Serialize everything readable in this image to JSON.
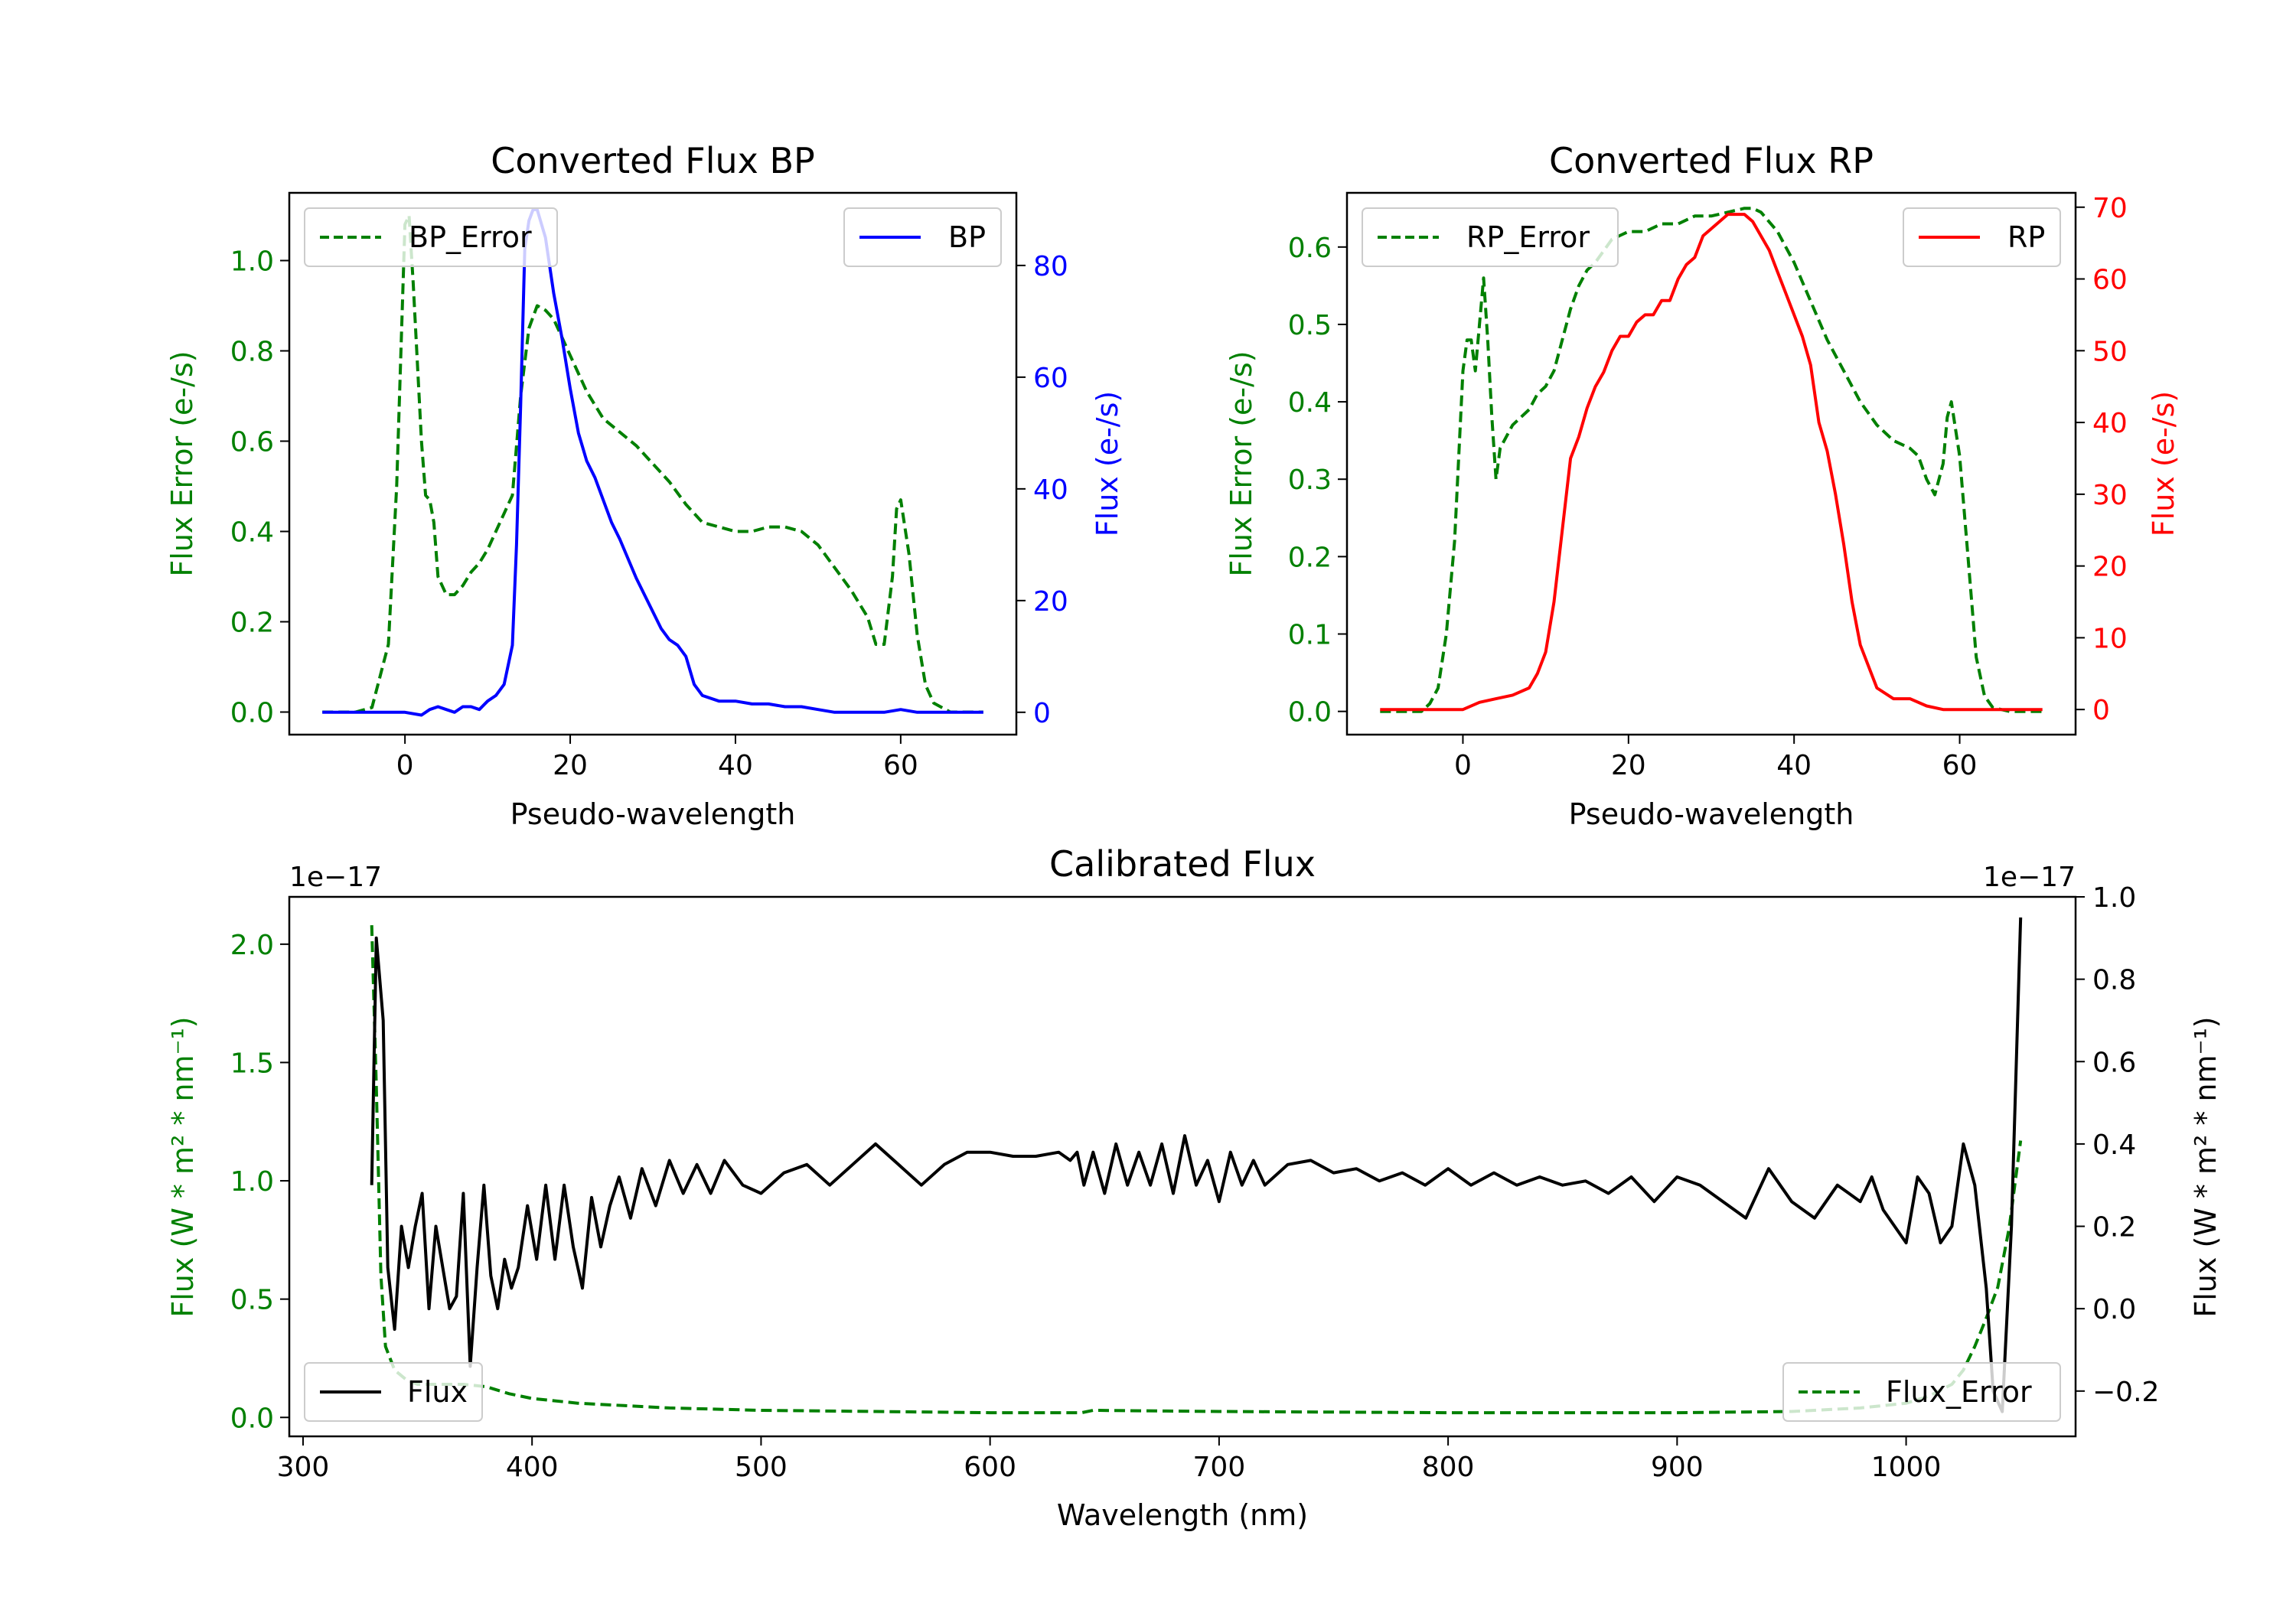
{
  "colors": {
    "green": "#008000",
    "blue": "#0000ff",
    "red": "#ff0000",
    "black": "#000000"
  },
  "chart_data": [
    {
      "type": "line",
      "title": "Converted Flux BP",
      "xlabel": "Pseudo-wavelength",
      "ylabel_left": "Flux Error (e-/s)",
      "ylabel_right": "Flux (e-/s)",
      "xlim": [
        -14,
        74
      ],
      "ylim_left": [
        -0.05,
        1.15
      ],
      "ylim_right": [
        -4,
        93
      ],
      "xticks": [
        0,
        20,
        40,
        60
      ],
      "yticks_left": [
        "0.0",
        "0.2",
        "0.4",
        "0.6",
        "0.8",
        "1.0"
      ],
      "yticks_right": [
        "0",
        "20",
        "40",
        "60",
        "80"
      ],
      "series": [
        {
          "name": "BP_Error",
          "axis": "left",
          "style": "dashed",
          "color": "green",
          "x": [
            -10,
            -6,
            -4,
            -2,
            -1,
            0,
            0.5,
            1,
            2,
            2.5,
            3,
            3.5,
            4,
            5,
            6,
            7,
            8,
            9,
            10,
            11,
            12,
            13,
            14,
            15,
            16,
            17,
            18,
            19,
            20,
            22,
            24,
            26,
            28,
            30,
            32,
            34,
            36,
            38,
            40,
            42,
            44,
            46,
            48,
            50,
            52,
            54,
            56,
            57,
            58,
            59,
            59.5,
            60,
            61,
            62,
            63,
            64,
            65,
            66,
            68,
            70
          ],
          "values": [
            0.0,
            0.0,
            0.01,
            0.15,
            0.5,
            1.08,
            1.1,
            0.95,
            0.6,
            0.48,
            0.47,
            0.42,
            0.3,
            0.26,
            0.26,
            0.28,
            0.31,
            0.33,
            0.36,
            0.4,
            0.44,
            0.48,
            0.7,
            0.85,
            0.9,
            0.89,
            0.87,
            0.83,
            0.79,
            0.71,
            0.65,
            0.62,
            0.59,
            0.55,
            0.51,
            0.46,
            0.42,
            0.41,
            0.4,
            0.4,
            0.41,
            0.41,
            0.4,
            0.37,
            0.32,
            0.27,
            0.21,
            0.15,
            0.15,
            0.3,
            0.45,
            0.47,
            0.35,
            0.17,
            0.06,
            0.02,
            0.01,
            0.0,
            0.0,
            0.0
          ]
        },
        {
          "name": "BP",
          "axis": "right",
          "style": "solid",
          "color": "blue",
          "x": [
            -10,
            -2,
            0,
            2,
            3,
            4,
            5,
            6,
            7,
            8,
            9,
            10,
            11,
            12,
            13,
            13.5,
            14,
            14.5,
            15,
            15.5,
            16,
            17,
            18,
            19,
            20,
            21,
            22,
            23,
            24,
            25,
            26,
            28,
            30,
            31,
            32,
            33,
            34,
            35,
            36,
            38,
            40,
            42,
            44,
            46,
            48,
            50,
            52,
            54,
            56,
            58,
            60,
            62,
            64,
            66,
            68,
            70
          ],
          "values": [
            0,
            0,
            0,
            -0.5,
            0.5,
            1,
            0.5,
            0,
            1,
            1,
            0.5,
            2,
            3,
            5,
            12,
            30,
            55,
            83,
            88,
            90,
            90,
            85,
            75,
            67,
            58,
            50,
            45,
            42,
            38,
            34,
            31,
            24,
            18,
            15,
            13,
            12,
            10,
            5,
            3,
            2,
            2,
            1.5,
            1.5,
            1,
            1,
            0.5,
            0,
            0,
            0,
            0,
            0.5,
            0,
            0,
            0,
            0,
            0
          ]
        }
      ],
      "legend": [
        "BP_Error",
        "BP"
      ]
    },
    {
      "type": "line",
      "title": "Converted Flux RP",
      "xlabel": "Pseudo-wavelength",
      "ylabel_left": "Flux Error (e-/s)",
      "ylabel_right": "Flux (e-/s)",
      "xlim": [
        -14,
        74
      ],
      "ylim_left": [
        -0.03,
        0.67
      ],
      "ylim_right": [
        -3.5,
        72
      ],
      "xticks": [
        0,
        20,
        40,
        60
      ],
      "yticks_left": [
        "0.0",
        "0.1",
        "0.2",
        "0.3",
        "0.4",
        "0.5",
        "0.6"
      ],
      "yticks_right": [
        "0",
        "10",
        "20",
        "30",
        "40",
        "50",
        "60",
        "70"
      ],
      "series": [
        {
          "name": "RP_Error",
          "axis": "left",
          "style": "dashed",
          "color": "green",
          "x": [
            -10,
            -5,
            -4,
            -3,
            -2,
            -1,
            0,
            0.5,
            1,
            1.5,
            2,
            2.5,
            3,
            3.5,
            4,
            4.5,
            5,
            6,
            7,
            8,
            9,
            10,
            11,
            12,
            13,
            14,
            15,
            16,
            18,
            20,
            22,
            24,
            26,
            28,
            30,
            32,
            34,
            35,
            36,
            38,
            40,
            42,
            44,
            46,
            48,
            50,
            52,
            54,
            55,
            56,
            57,
            58,
            58.5,
            59,
            60,
            61,
            62,
            63,
            64,
            66,
            70
          ],
          "values": [
            0.0,
            0.0,
            0.01,
            0.03,
            0.1,
            0.22,
            0.44,
            0.48,
            0.48,
            0.44,
            0.5,
            0.56,
            0.48,
            0.38,
            0.3,
            0.34,
            0.35,
            0.37,
            0.38,
            0.39,
            0.41,
            0.42,
            0.44,
            0.48,
            0.52,
            0.55,
            0.57,
            0.58,
            0.61,
            0.62,
            0.62,
            0.63,
            0.63,
            0.64,
            0.64,
            0.645,
            0.65,
            0.65,
            0.645,
            0.62,
            0.58,
            0.53,
            0.48,
            0.44,
            0.4,
            0.37,
            0.35,
            0.34,
            0.33,
            0.3,
            0.28,
            0.32,
            0.38,
            0.4,
            0.33,
            0.2,
            0.07,
            0.02,
            0.005,
            0.0,
            0.0
          ]
        },
        {
          "name": "RP",
          "axis": "right",
          "style": "solid",
          "color": "red",
          "x": [
            -10,
            -2,
            0,
            2,
            4,
            6,
            8,
            9,
            10,
            11,
            12,
            13,
            14,
            15,
            16,
            17,
            18,
            19,
            20,
            21,
            22,
            23,
            24,
            25,
            26,
            27,
            28,
            29,
            30,
            31,
            32,
            33,
            34,
            35,
            36,
            37,
            38,
            39,
            40,
            41,
            42,
            43,
            44,
            45,
            46,
            47,
            48,
            50,
            52,
            54,
            56,
            58,
            60,
            62,
            64,
            66,
            70
          ],
          "values": [
            0,
            0,
            0,
            1,
            1.5,
            2,
            3,
            5,
            8,
            15,
            25,
            35,
            38,
            42,
            45,
            47,
            50,
            52,
            52,
            54,
            55,
            55,
            57,
            57,
            60,
            62,
            63,
            66,
            67,
            68,
            69,
            69,
            69,
            68,
            66,
            64,
            61,
            58,
            55,
            52,
            48,
            40,
            36,
            30,
            23,
            15,
            9,
            3,
            1.5,
            1.5,
            0.5,
            0,
            0,
            0,
            0,
            0,
            0
          ]
        }
      ],
      "legend": [
        "RP_Error",
        "RP"
      ]
    },
    {
      "type": "line",
      "title": "Calibrated Flux",
      "xlabel": "Wavelength (nm)",
      "ylabel_left": "Flux (W * m² * nm⁻¹)",
      "ylabel_right": "Flux (W * m² * nm⁻¹)",
      "offset_label_left": "1e−17",
      "offset_label_right": "1e−17",
      "xlim": [
        294,
        1074
      ],
      "ylim_left": [
        -0.08,
        2.2
      ],
      "ylim_right": [
        -0.31,
        1.0
      ],
      "xticks": [
        300,
        400,
        500,
        600,
        700,
        800,
        900,
        1000
      ],
      "yticks_left": [
        "0.0",
        "0.5",
        "1.0",
        "1.5",
        "2.0"
      ],
      "yticks_right": [
        "−0.2",
        "0.0",
        "0.2",
        "0.4",
        "0.6",
        "0.8",
        "1.0"
      ],
      "series": [
        {
          "name": "Flux_Error",
          "axis": "left",
          "style": "dashed",
          "color": "green",
          "x": [
            330,
            332,
            334,
            336,
            340,
            345,
            350,
            360,
            370,
            380,
            390,
            400,
            420,
            440,
            460,
            500,
            550,
            600,
            640,
            645,
            700,
            800,
            900,
            950,
            980,
            1000,
            1010,
            1020,
            1025,
            1030,
            1035,
            1040,
            1045,
            1050
          ],
          "values": [
            2.08,
            1.4,
            0.6,
            0.3,
            0.2,
            0.16,
            0.14,
            0.14,
            0.14,
            0.13,
            0.1,
            0.08,
            0.06,
            0.05,
            0.04,
            0.03,
            0.025,
            0.02,
            0.02,
            0.03,
            0.025,
            0.02,
            0.02,
            0.025,
            0.04,
            0.06,
            0.09,
            0.14,
            0.2,
            0.3,
            0.42,
            0.55,
            0.8,
            1.17
          ]
        },
        {
          "name": "Flux",
          "axis": "right",
          "style": "solid",
          "color": "black",
          "x": [
            330,
            332,
            335,
            337,
            340,
            343,
            346,
            349,
            352,
            355,
            358,
            361,
            364,
            367,
            370,
            373,
            376,
            379,
            382,
            385,
            388,
            391,
            394,
            398,
            402,
            406,
            410,
            414,
            418,
            422,
            426,
            430,
            434,
            438,
            443,
            448,
            454,
            460,
            466,
            472,
            478,
            484,
            492,
            500,
            510,
            520,
            530,
            540,
            550,
            560,
            570,
            580,
            590,
            600,
            610,
            620,
            630,
            635,
            638,
            641,
            645,
            650,
            655,
            660,
            665,
            670,
            675,
            680,
            685,
            690,
            695,
            700,
            705,
            710,
            715,
            720,
            730,
            740,
            750,
            760,
            770,
            780,
            790,
            800,
            810,
            820,
            830,
            840,
            850,
            860,
            870,
            880,
            890,
            900,
            910,
            920,
            930,
            940,
            950,
            960,
            970,
            980,
            985,
            990,
            1000,
            1005,
            1010,
            1015,
            1020,
            1025,
            1030,
            1035,
            1038,
            1042,
            1046,
            1050
          ],
          "values": [
            0.3,
            0.9,
            0.7,
            0.1,
            -0.05,
            0.2,
            0.1,
            0.2,
            0.28,
            0.0,
            0.2,
            0.1,
            0.0,
            0.03,
            0.28,
            -0.14,
            0.1,
            0.3,
            0.08,
            0.0,
            0.12,
            0.05,
            0.1,
            0.25,
            0.12,
            0.3,
            0.12,
            0.3,
            0.15,
            0.05,
            0.27,
            0.15,
            0.25,
            0.32,
            0.22,
            0.34,
            0.25,
            0.36,
            0.28,
            0.35,
            0.28,
            0.36,
            0.3,
            0.28,
            0.33,
            0.35,
            0.3,
            0.35,
            0.4,
            0.35,
            0.3,
            0.35,
            0.38,
            0.38,
            0.37,
            0.37,
            0.38,
            0.36,
            0.38,
            0.3,
            0.38,
            0.28,
            0.4,
            0.3,
            0.38,
            0.3,
            0.4,
            0.28,
            0.42,
            0.3,
            0.36,
            0.26,
            0.38,
            0.3,
            0.36,
            0.3,
            0.35,
            0.36,
            0.33,
            0.34,
            0.31,
            0.33,
            0.3,
            0.34,
            0.3,
            0.33,
            0.3,
            0.32,
            0.3,
            0.31,
            0.28,
            0.32,
            0.26,
            0.32,
            0.3,
            0.26,
            0.22,
            0.34,
            0.26,
            0.22,
            0.3,
            0.26,
            0.32,
            0.24,
            0.16,
            0.32,
            0.28,
            0.16,
            0.2,
            0.4,
            0.3,
            0.05,
            -0.2,
            -0.25,
            0.2,
            0.95
          ]
        }
      ],
      "legend": [
        "Flux",
        "Flux_Error"
      ]
    }
  ]
}
